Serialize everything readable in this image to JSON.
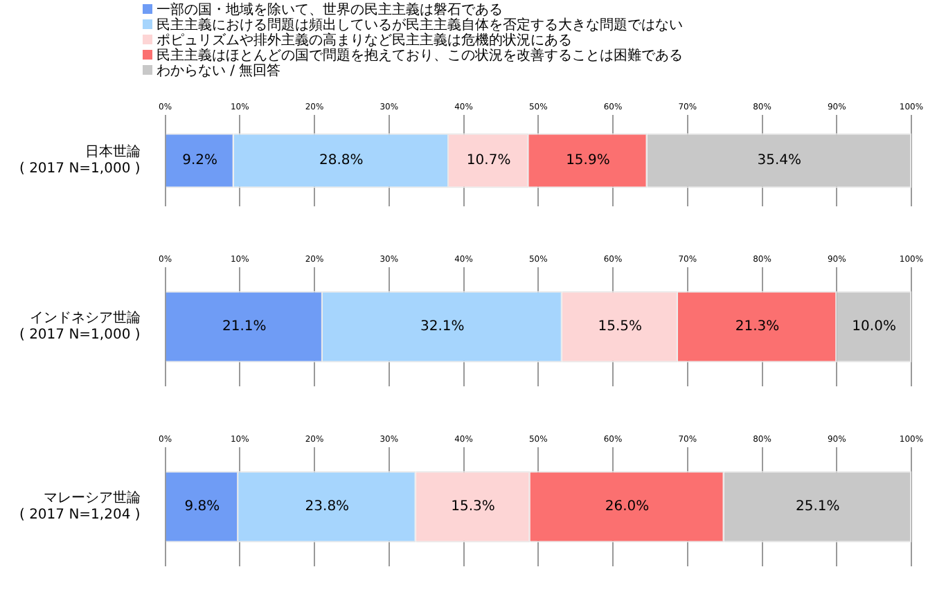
{
  "chart_data": [
    {
      "type": "bar",
      "orientation": "horizontal",
      "stacked": true,
      "categories": [
        "日本世論\n( 2017 N=1,000 )"
      ],
      "xlim": [
        0,
        100
      ],
      "xticks": [
        {
          "value": 0,
          "label": "0%"
        },
        {
          "value": 10,
          "label": "10%"
        },
        {
          "value": 20,
          "label": "20%"
        },
        {
          "value": 30,
          "label": "30%"
        },
        {
          "value": 40,
          "label": "40%"
        },
        {
          "value": 50,
          "label": "50%"
        },
        {
          "value": 60,
          "label": "60%"
        },
        {
          "value": 70,
          "label": "70%"
        },
        {
          "value": 80,
          "label": "80%"
        },
        {
          "value": 90,
          "label": "90%"
        },
        {
          "value": 100,
          "label": "100%"
        }
      ],
      "grid": "x",
      "legend": "top",
      "series": [
        {
          "name": "一部の国・地域を除いて、世界の民主主義は磐石である",
          "color": "#6f9cf5",
          "values": [
            9.2
          ],
          "value_labels": [
            "9.2%"
          ]
        },
        {
          "name": "民主主義における問題は頻出しているが民主主義自体を否定する大きな問題ではない",
          "color": "#a6d5fd",
          "values": [
            28.8
          ],
          "value_labels": [
            "28.8%"
          ]
        },
        {
          "name": "ポピュリズムや排外主義の高まりなど民主主義は危機的状況にある",
          "color": "#fdd5d5",
          "values": [
            10.7
          ],
          "value_labels": [
            "10.7%"
          ]
        },
        {
          "name": "民主主義はほとんどの国で問題を抱えており、この状況を改善することは困難である",
          "color": "#fb7070",
          "values": [
            15.9
          ],
          "value_labels": [
            "15.9%"
          ]
        },
        {
          "name": "わからない / 無回答",
          "color": "#c8c8c8",
          "values": [
            35.4
          ],
          "value_labels": [
            "35.4%"
          ]
        }
      ]
    },
    {
      "type": "bar",
      "orientation": "horizontal",
      "stacked": true,
      "categories": [
        "インドネシア世論\n( 2017 N=1,000 )"
      ],
      "xlim": [
        0,
        100
      ],
      "xticks": [
        {
          "value": 0,
          "label": "0%"
        },
        {
          "value": 10,
          "label": "10%"
        },
        {
          "value": 20,
          "label": "20%"
        },
        {
          "value": 30,
          "label": "30%"
        },
        {
          "value": 40,
          "label": "40%"
        },
        {
          "value": 50,
          "label": "50%"
        },
        {
          "value": 60,
          "label": "60%"
        },
        {
          "value": 70,
          "label": "70%"
        },
        {
          "value": 80,
          "label": "80%"
        },
        {
          "value": 90,
          "label": "90%"
        },
        {
          "value": 100,
          "label": "100%"
        }
      ],
      "grid": "x",
      "series": [
        {
          "color": "#6f9cf5",
          "values": [
            21.1
          ],
          "value_labels": [
            "21.1%"
          ]
        },
        {
          "color": "#a6d5fd",
          "values": [
            32.1
          ],
          "value_labels": [
            "32.1%"
          ]
        },
        {
          "color": "#fdd5d5",
          "values": [
            15.5
          ],
          "value_labels": [
            "15.5%"
          ]
        },
        {
          "color": "#fb7070",
          "values": [
            21.3
          ],
          "value_labels": [
            "21.3%"
          ]
        },
        {
          "color": "#c8c8c8",
          "values": [
            10.0
          ],
          "value_labels": [
            "10.0%"
          ]
        }
      ]
    },
    {
      "type": "bar",
      "orientation": "horizontal",
      "stacked": true,
      "categories": [
        "マレーシア世論\n( 2017 N=1,204 )"
      ],
      "xlim": [
        0,
        100
      ],
      "xticks": [
        {
          "value": 0,
          "label": "0%"
        },
        {
          "value": 10,
          "label": "10%"
        },
        {
          "value": 20,
          "label": "20%"
        },
        {
          "value": 30,
          "label": "30%"
        },
        {
          "value": 40,
          "label": "40%"
        },
        {
          "value": 50,
          "label": "50%"
        },
        {
          "value": 60,
          "label": "60%"
        },
        {
          "value": 70,
          "label": "70%"
        },
        {
          "value": 80,
          "label": "80%"
        },
        {
          "value": 90,
          "label": "90%"
        },
        {
          "value": 100,
          "label": "100%"
        }
      ],
      "grid": "x",
      "series": [
        {
          "color": "#6f9cf5",
          "values": [
            9.8
          ],
          "value_labels": [
            "9.8%"
          ]
        },
        {
          "color": "#a6d5fd",
          "values": [
            23.8
          ],
          "value_labels": [
            "23.8%"
          ]
        },
        {
          "color": "#fdd5d5",
          "values": [
            15.3
          ],
          "value_labels": [
            "15.3%"
          ]
        },
        {
          "color": "#fb7070",
          "values": [
            26.0
          ],
          "value_labels": [
            "26.0%"
          ]
        },
        {
          "color": "#c8c8c8",
          "values": [
            25.1
          ],
          "value_labels": [
            "25.1%"
          ]
        }
      ]
    }
  ]
}
